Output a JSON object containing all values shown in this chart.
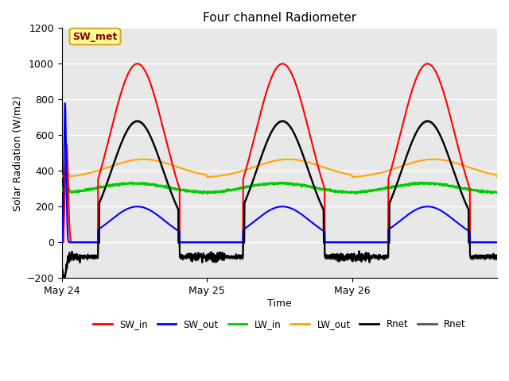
{
  "title": "Four channel Radiometer",
  "ylabel": "Solar Radiation (W/m2)",
  "xlabel": "Time",
  "ylim": [
    -200,
    1200
  ],
  "annotation_text": "SW_met",
  "annotation_color": "#8B0000",
  "annotation_bg": "#FFFF99",
  "annotation_border": "#DAA520",
  "x_ticks": [
    0,
    24,
    48
  ],
  "x_tick_labels": [
    "May 24",
    "May 25",
    "May 26"
  ],
  "total_hours": 72,
  "series": {
    "SW_in": {
      "color": "#FF0000",
      "linewidth": 1.5
    },
    "SW_out": {
      "color": "#0000FF",
      "linewidth": 1.5
    },
    "LW_in": {
      "color": "#00CC00",
      "linewidth": 1.5
    },
    "LW_out": {
      "color": "#FFA500",
      "linewidth": 1.5
    },
    "Rnet_black": {
      "color": "#000000",
      "linewidth": 1.5
    },
    "Rnet_dark": {
      "color": "#555555",
      "linewidth": 1.5
    }
  },
  "legend_labels": [
    "SW_in",
    "SW_out",
    "LW_in",
    "LW_out",
    "Rnet",
    "Rnet"
  ],
  "legend_colors": [
    "#FF0000",
    "#0000FF",
    "#00CC00",
    "#FFA500",
    "#000000",
    "#555555"
  ],
  "bg_color": "#E8E8E8",
  "grid_color": "#FFFFFF",
  "yticks": [
    -200,
    0,
    200,
    400,
    600,
    800,
    1000,
    1200
  ]
}
